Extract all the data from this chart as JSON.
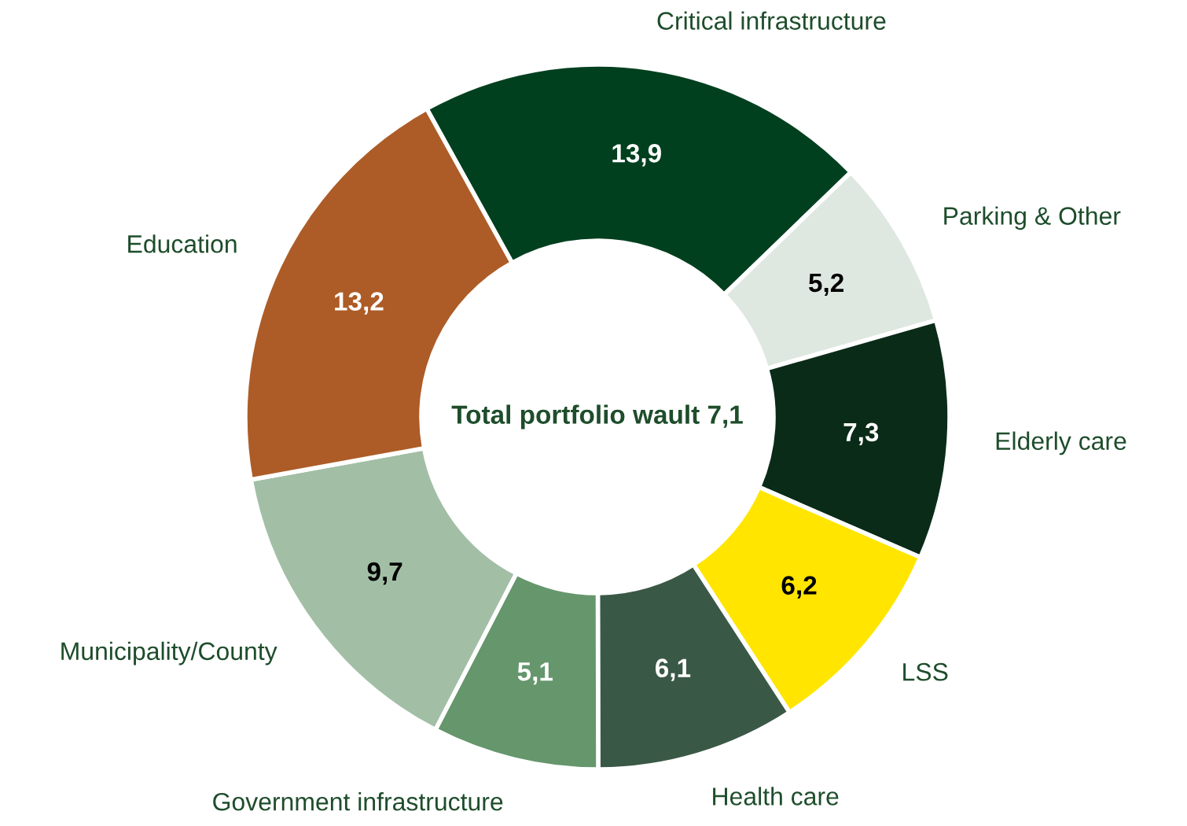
{
  "chart_data": {
    "type": "donut",
    "categories": [
      "Critical infrastructure",
      "Parking & Other",
      "Elderly care",
      "LSS",
      "Health care",
      "Government infrastructure",
      "Municipality/County",
      "Education"
    ],
    "values": [
      13.9,
      5.2,
      7.3,
      6.2,
      6.1,
      5.1,
      9.7,
      13.2
    ],
    "value_labels": [
      "13,9",
      "5,2",
      "7,3",
      "6,2",
      "6,1",
      "5,1",
      "9,7",
      "13,2"
    ],
    "colors": [
      "#00401f",
      "#dfe8e0",
      "#0a2b18",
      "#ffe500",
      "#3a5846",
      "#65966c",
      "#a2bfa6",
      "#ad5c27"
    ],
    "annotations": [
      "Total portfolio wault 7,1"
    ],
    "legend": false
  }
}
